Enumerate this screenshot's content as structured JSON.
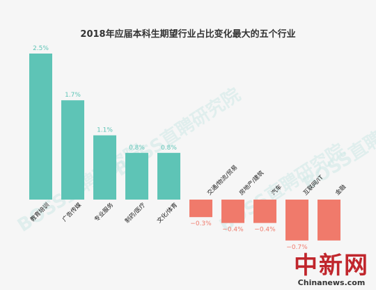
{
  "chart_data": {
    "type": "bar",
    "title": "2018年应届本科生期望行业占比变化最大的五个行业",
    "categories": [
      "教育培训",
      "广告传媒",
      "专业服务",
      "制药/医疗",
      "文化/体育",
      "交通/物流/贸易",
      "房地产/建筑",
      "汽车",
      "互联网/IT",
      "金融"
    ],
    "values": [
      2.5,
      1.7,
      1.1,
      0.8,
      0.8,
      -0.3,
      -0.4,
      -0.4,
      -0.7,
      -0.7
    ],
    "value_labels": [
      "2.5%",
      "1.7%",
      "1.1%",
      "0.8%",
      "0.8%",
      "−0.3%",
      "−0.4%",
      "−0.4%",
      "−0.7%",
      ""
    ],
    "colors": {
      "positive": "#5ec4b6",
      "negative": "#f07a6b",
      "background": "#f6f6f6"
    },
    "grid": false,
    "legend": "none"
  },
  "watermark": "BOSS直聘研究院",
  "logo": {
    "cn": "中新网",
    "en": "Chinanews.com"
  }
}
